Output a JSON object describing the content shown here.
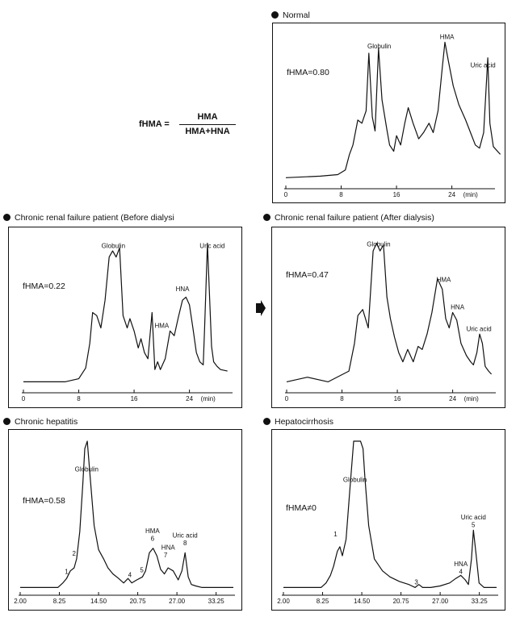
{
  "formula": {
    "lhs": "fHMA",
    "eq": "=",
    "numerator": "HMA",
    "denominator": "HMA+HNA"
  },
  "panels": [
    {
      "title": "Normal",
      "fhma": "fHMA=0.80"
    },
    {
      "title": "Chronic renal failure patient (Before dialysi",
      "fhma": "fHMA=0.22"
    },
    {
      "title": "Chronic renal failure patient (After dialysis)",
      "fhma": "fHMA=0.47"
    },
    {
      "title": "Chronic hepatitis",
      "fhma": "fHMA=0.58"
    },
    {
      "title": "Hepatocirrhosis",
      "fhma": "fHMA≠0"
    }
  ],
  "chart_data": [
    {
      "type": "line",
      "title": "Normal",
      "x_unit": "(min)",
      "x_ticks": [
        "0",
        "8",
        "16",
        "24"
      ],
      "xlim": [
        0,
        30
      ],
      "ylim": [
        0,
        100
      ],
      "peak_labels": [
        {
          "text": "Globulin",
          "x": 13.5,
          "y": 88
        },
        {
          "text": "HMA",
          "x": 23.3,
          "y": 94
        },
        {
          "text": "Uric acid",
          "x": 28.5,
          "y": 76
        }
      ],
      "series": [
        {
          "x": [
            0,
            5,
            7.5,
            8.6,
            9.2,
            9.7,
            10.4,
            11,
            11.6,
            12,
            12.5,
            12.9,
            13.4,
            13.9,
            14.6,
            15,
            15.6,
            16,
            16.6,
            17.2,
            17.7,
            18.4,
            19.2,
            19.9,
            20.7,
            21.3,
            22,
            22.6,
            23,
            23.5,
            24.2,
            25,
            26,
            26.7,
            27.4,
            28,
            28.6,
            29.2,
            29.5,
            30,
            31
          ],
          "y": [
            5,
            6,
            7,
            10,
            20,
            26,
            42,
            40,
            48,
            85,
            44,
            35,
            88,
            55,
            36,
            26,
            22,
            32,
            26,
            40,
            50,
            40,
            30,
            34,
            40,
            34,
            48,
            75,
            92,
            80,
            64,
            52,
            42,
            34,
            26,
            24,
            34,
            82,
            40,
            25,
            20
          ]
        }
      ]
    },
    {
      "type": "line",
      "title": "Chronic renal failure patient (Before dialysi",
      "x_unit": "(min)",
      "x_ticks": [
        "0",
        "8",
        "16",
        "24"
      ],
      "xlim": [
        0,
        30
      ],
      "ylim": [
        0,
        100
      ],
      "peak_labels": [
        {
          "text": "Globulin",
          "x": 13,
          "y": 92
        },
        {
          "text": "HMA",
          "x": 20,
          "y": 40
        },
        {
          "text": "HNA",
          "x": 23,
          "y": 64
        },
        {
          "text": "Uric acid",
          "x": 27.3,
          "y": 92
        }
      ],
      "series": [
        {
          "x": [
            0,
            6,
            8,
            9,
            9.6,
            10,
            10.6,
            11.2,
            11.8,
            12.4,
            12.9,
            13.4,
            13.9,
            14.4,
            15,
            15.4,
            16,
            16.6,
            17,
            17.5,
            18,
            18.6,
            19,
            19.4,
            19.8,
            20.5,
            21.2,
            21.8,
            22.4,
            23,
            23.5,
            24,
            24.5,
            25,
            25.5,
            26,
            26.2,
            26.6,
            27.2,
            27.5,
            28,
            28.5,
            29.5
          ],
          "y": [
            5,
            5,
            7,
            14,
            30,
            50,
            48,
            40,
            58,
            86,
            90,
            86,
            92,
            48,
            40,
            46,
            38,
            27,
            33,
            24,
            20,
            50,
            13,
            18,
            13,
            20,
            38,
            35,
            47,
            58,
            60,
            55,
            40,
            24,
            18,
            16,
            40,
            95,
            28,
            18,
            15,
            13,
            12
          ]
        }
      ]
    },
    {
      "type": "line",
      "title": "Chronic renal failure patient (After dialysis)",
      "x_unit": "(min)",
      "x_ticks": [
        "0",
        "8",
        "16",
        "24"
      ],
      "xlim": [
        0,
        30
      ],
      "ylim": [
        0,
        100
      ],
      "peak_labels": [
        {
          "text": "Globulin",
          "x": 13.3,
          "y": 93
        },
        {
          "text": "HMA",
          "x": 22.7,
          "y": 70
        },
        {
          "text": "HNA",
          "x": 24.7,
          "y": 52
        },
        {
          "text": "Uric acid",
          "x": 27.8,
          "y": 38
        }
      ],
      "series": [
        {
          "x": [
            0,
            3,
            6,
            9,
            9.8,
            10.3,
            11,
            11.8,
            12.5,
            13,
            13.5,
            14,
            14.5,
            15,
            15.6,
            16.2,
            16.8,
            17.5,
            18.3,
            19,
            19.6,
            20.3,
            21,
            21.8,
            22.5,
            23,
            23.5,
            24,
            24.6,
            25.2,
            26,
            26.6,
            27,
            27.5,
            27.9,
            28.3,
            28.7,
            29.2,
            29.6
          ],
          "y": [
            5,
            8,
            5,
            12,
            30,
            48,
            52,
            40,
            90,
            95,
            90,
            94,
            60,
            46,
            34,
            24,
            18,
            26,
            18,
            28,
            26,
            36,
            50,
            72,
            65,
            46,
            40,
            50,
            45,
            30,
            22,
            18,
            16,
            24,
            36,
            30,
            15,
            12,
            10
          ]
        }
      ]
    },
    {
      "type": "line",
      "title": "Chronic hepatitis",
      "x_ticks": [
        "2.00",
        "8.25",
        "14.50",
        "20.75",
        "27.00",
        "33.25"
      ],
      "xlim": [
        2,
        36
      ],
      "ylim": [
        0,
        100
      ],
      "peak_labels": [
        {
          "text": "Globulin",
          "x": 12.6,
          "y": 80
        },
        {
          "text": "1",
          "x": 9.4,
          "y": 12
        },
        {
          "text": "2",
          "x": 10.6,
          "y": 24
        },
        {
          "text": "4",
          "x": 19.5,
          "y": 10
        },
        {
          "text": "5",
          "x": 21.4,
          "y": 13
        },
        {
          "text": "HMA",
          "x": 23.1,
          "y": 39
        },
        {
          "text": "6",
          "x": 23.1,
          "y": 34
        },
        {
          "text": "HNA",
          "x": 25.6,
          "y": 28
        },
        {
          "text": "7",
          "x": 25.2,
          "y": 23
        },
        {
          "text": "Uric acid",
          "x": 28.3,
          "y": 36
        },
        {
          "text": "8",
          "x": 28.3,
          "y": 31
        }
      ],
      "series": [
        {
          "x": [
            2,
            8,
            8.8,
            9.4,
            10,
            10.6,
            11,
            11.5,
            12,
            12.3,
            12.7,
            13.2,
            13.8,
            14.5,
            15.3,
            16,
            16.8,
            17.7,
            18.5,
            19.2,
            19.8,
            20.6,
            21.5,
            22,
            22.6,
            23.2,
            23.8,
            24.4,
            25,
            25.6,
            26.4,
            27.2,
            27.8,
            28.3,
            28.8,
            29.3,
            30,
            31,
            33,
            36
          ],
          "y": [
            3,
            3,
            6,
            9,
            14,
            16,
            22,
            40,
            72,
            95,
            100,
            74,
            44,
            28,
            22,
            16,
            12,
            9,
            6,
            9,
            6,
            8,
            10,
            14,
            26,
            29,
            24,
            15,
            12,
            16,
            14,
            8,
            14,
            26,
            10,
            5,
            4,
            3,
            3,
            3
          ]
        }
      ]
    },
    {
      "type": "line",
      "title": "Hepatocirrhosis",
      "x_ticks": [
        "2.00",
        "8.25",
        "14.50",
        "20.75",
        "27.00",
        "33.25"
      ],
      "xlim": [
        2,
        36
      ],
      "ylim": [
        0,
        100
      ],
      "peak_labels": [
        {
          "text": "Globulin",
          "x": 13.4,
          "y": 73
        },
        {
          "text": "1",
          "x": 10.3,
          "y": 37
        },
        {
          "text": "3",
          "x": 23.2,
          "y": 5
        },
        {
          "text": "HNA",
          "x": 30.3,
          "y": 17
        },
        {
          "text": "4",
          "x": 30.3,
          "y": 12
        },
        {
          "text": "Uric acid",
          "x": 32.3,
          "y": 48
        },
        {
          "text": "5",
          "x": 32.3,
          "y": 43
        }
      ],
      "series": [
        {
          "x": [
            2,
            8,
            8.8,
            9.5,
            10,
            10.6,
            11,
            11.4,
            12,
            12.6,
            13.2,
            13.8,
            14.3,
            14.7,
            15,
            15.6,
            16.5,
            17.8,
            19,
            20.5,
            22,
            23,
            23.6,
            24.2,
            25.5,
            27,
            28.5,
            29.5,
            30.3,
            31,
            31.5,
            32,
            32.3,
            32.7,
            33.2,
            34,
            36
          ],
          "y": [
            3,
            3,
            6,
            11,
            17,
            27,
            30,
            24,
            35,
            68,
            100,
            100,
            100,
            95,
            76,
            44,
            22,
            14,
            10,
            7,
            5,
            3,
            5,
            3,
            3,
            4,
            6,
            9,
            11,
            8,
            5,
            22,
            41,
            26,
            6,
            3,
            3
          ]
        }
      ]
    }
  ]
}
